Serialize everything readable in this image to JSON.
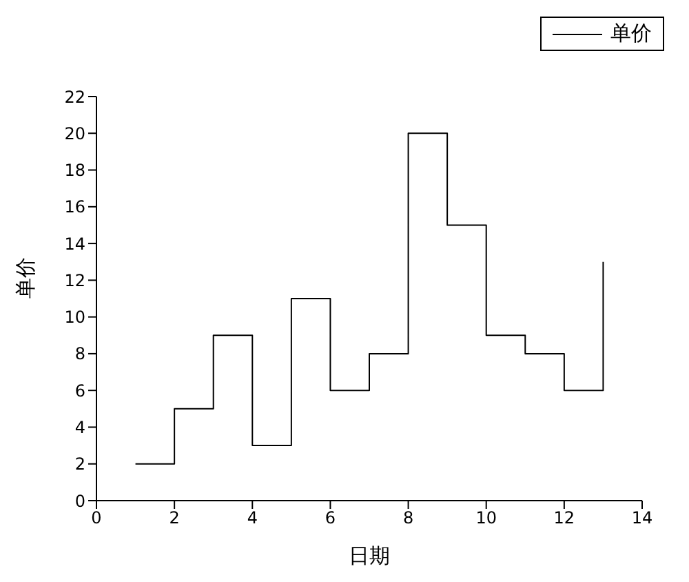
{
  "chart_data": {
    "type": "step",
    "xlabel": "日期",
    "ylabel": "单价",
    "x": [
      1,
      2,
      3,
      4,
      5,
      6,
      7,
      8,
      9,
      10,
      11,
      12,
      13
    ],
    "series": [
      {
        "name": "单价",
        "color": "#000000",
        "values": [
          2,
          5,
          9,
          3,
          11,
          6,
          8,
          20,
          15,
          9,
          8,
          6,
          13
        ]
      }
    ],
    "xlim": [
      0,
      14
    ],
    "xticks": [
      0,
      2,
      4,
      6,
      8,
      10,
      12,
      14
    ],
    "ylim": [
      0,
      22
    ],
    "yticks": [
      0,
      2,
      4,
      6,
      8,
      10,
      12,
      14,
      16,
      18,
      20,
      22
    ],
    "grid": false,
    "legend": "top right",
    "marker": "none",
    "line_style": "solid"
  }
}
